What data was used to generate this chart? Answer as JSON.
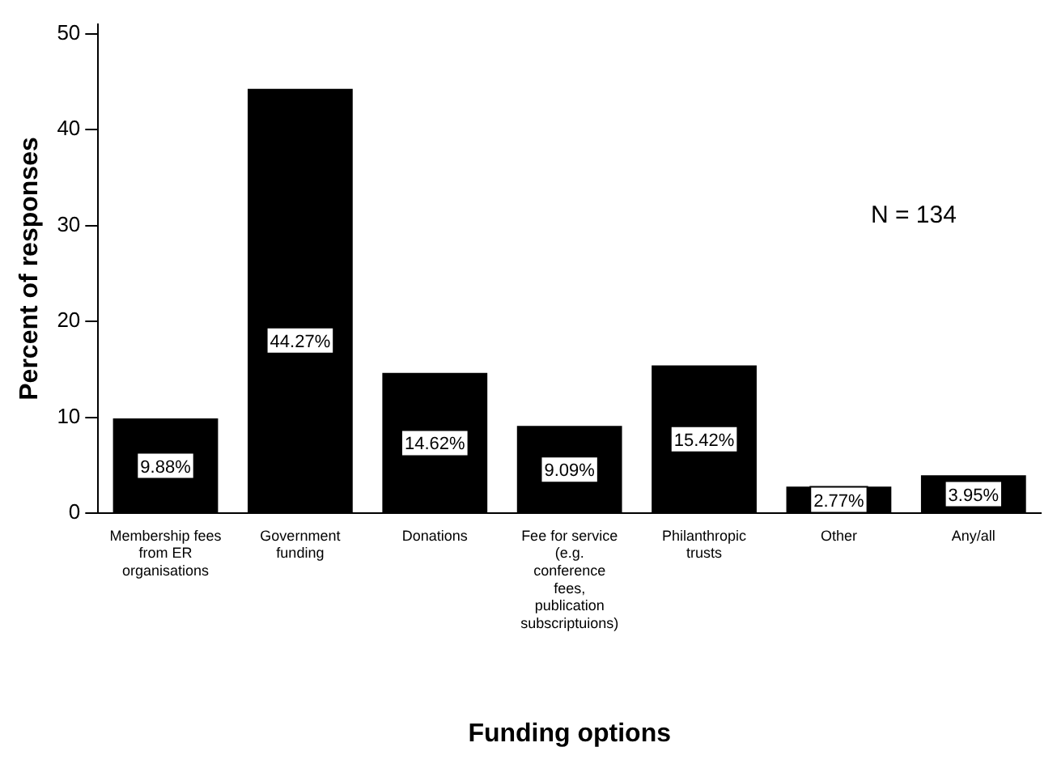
{
  "chart_data": {
    "type": "bar",
    "xlabel": "Funding options",
    "ylabel": "Percent of responses",
    "categories": [
      "Membership fees from ER organisations",
      "Government funding",
      "Donations",
      "Fee for service (e.g. conference fees, publication subscriptuions)",
      "Philanthropic trusts",
      "Other",
      "Any/all"
    ],
    "values": [
      9.88,
      44.27,
      14.62,
      9.09,
      15.42,
      2.77,
      3.95
    ],
    "value_labels": [
      "9.88%",
      "44.27%",
      "14.62%",
      "9.09%",
      "15.42%",
      "2.77%",
      "3.95%"
    ],
    "color": "#000000",
    "ylim": [
      0,
      51
    ],
    "yticks": [
      0,
      10,
      20,
      30,
      40,
      50
    ],
    "grid": false,
    "legend": false,
    "annotations": [
      "N = 134"
    ]
  }
}
